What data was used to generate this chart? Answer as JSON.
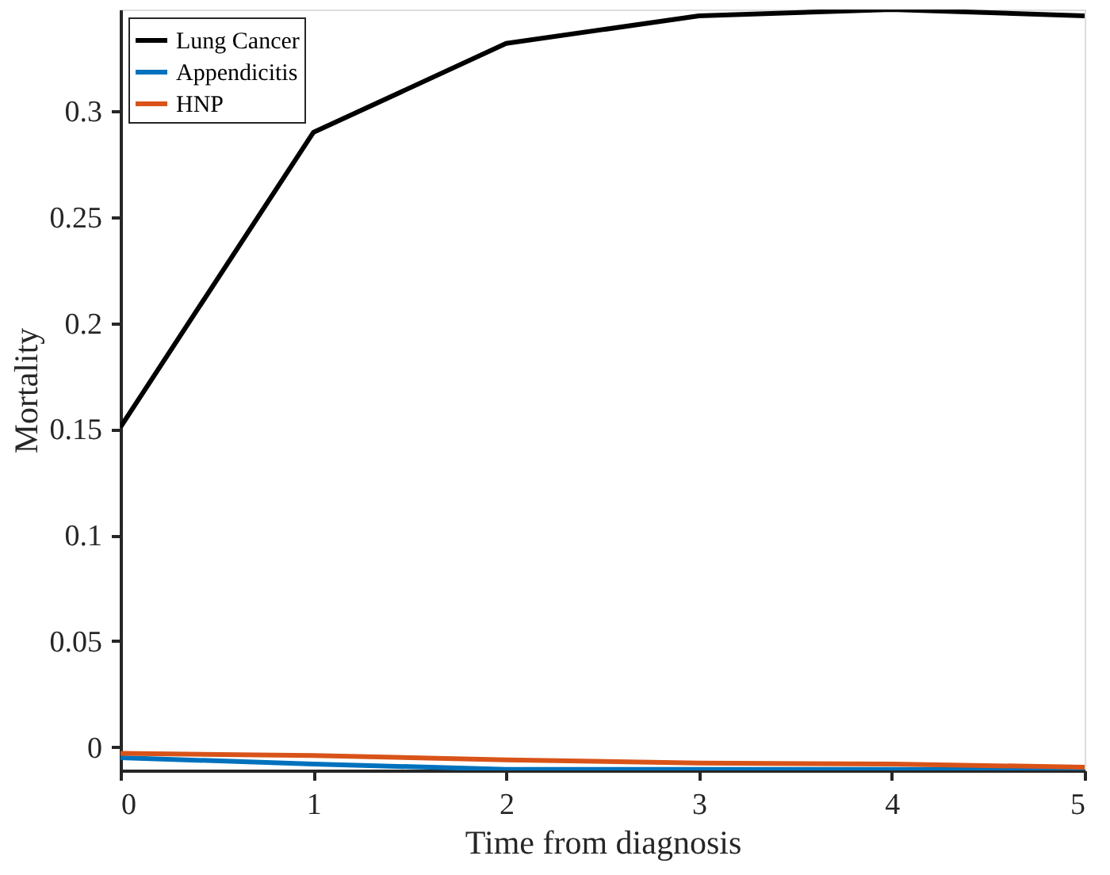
{
  "chart_data": {
    "type": "line",
    "xlabel": "Time from diagnosis",
    "ylabel": "Mortality",
    "x": [
      0,
      1,
      2,
      3,
      4,
      5
    ],
    "series": [
      {
        "name": "Lung Cancer",
        "color": "#000000",
        "values": [
          0.151,
          0.29,
          0.332,
          0.345,
          0.348,
          0.345
        ]
      },
      {
        "name": "Appendicitis",
        "color": "#0072bd",
        "values": [
          -0.005,
          -0.008,
          -0.0105,
          -0.0105,
          -0.0105,
          -0.0105
        ]
      },
      {
        "name": "HNP",
        "color": "#d95319",
        "values": [
          -0.003,
          -0.004,
          -0.006,
          -0.0075,
          -0.008,
          -0.0095
        ]
      }
    ],
    "xlim": [
      0,
      5
    ],
    "xticks": [
      0,
      1,
      2,
      3,
      4,
      5
    ],
    "ylim": [
      -0.011,
      0.348
    ],
    "yticks": [
      0,
      0.05,
      0.1,
      0.15,
      0.2,
      0.25,
      0.3
    ],
    "grid": false,
    "legend": "top left",
    "marker": "none",
    "line_style": "solid"
  }
}
